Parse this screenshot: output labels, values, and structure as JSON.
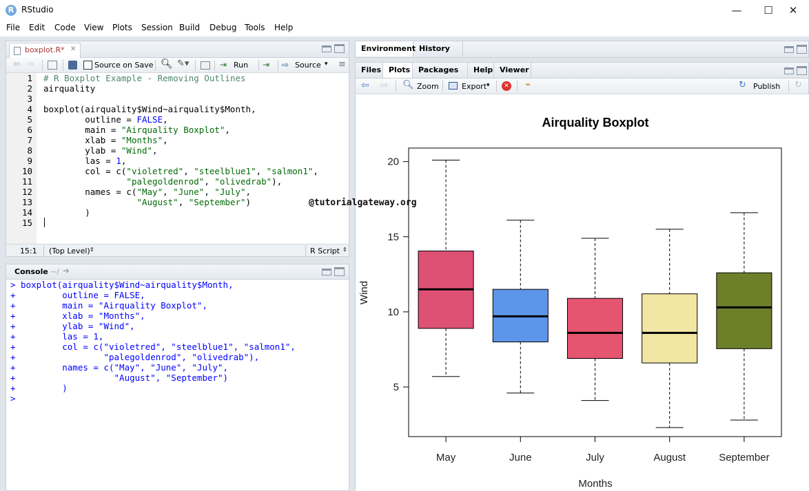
{
  "window": {
    "title": "RStudio",
    "icon_letter": "R",
    "controls": [
      "—",
      "☐",
      "✕"
    ]
  },
  "menu": [
    "File",
    "Edit",
    "Code",
    "View",
    "Plots",
    "Session",
    "Build",
    "Debug",
    "Tools",
    "Help"
  ],
  "editor": {
    "tab_label": "boxplot.R*",
    "source_on_save_label": "Source on Save",
    "run_label": "Run",
    "source_label": "Source",
    "line_numbers": [
      "1",
      "2",
      "3",
      "4",
      "5",
      "6",
      "7",
      "8",
      "9",
      "10",
      "11",
      "12",
      "13",
      "14",
      "15"
    ],
    "status_position": "15:1",
    "status_scope": "(Top Level)",
    "status_filetype": "R Script",
    "lines": [
      "# R Boxplot Example - Removing Outlines",
      "airquality",
      "",
      "boxplot(airquality$Wind~airquality$Month,",
      "        outline = FALSE,",
      "        main = \"Airquality Boxplot\",",
      "        xlab = \"Months\",",
      "        ylab = \"Wind\",",
      "        las = 1,",
      "        col = c(\"violetred\", \"steelblue1\", \"salmon1\",",
      "                \"palegoldenrod\", \"olivedrab\"),",
      "        names = c(\"May\", \"June\", \"July\",",
      "                  \"August\", \"September\")",
      "        )",
      ""
    ]
  },
  "watermark": "@tutorialgateway.org",
  "console": {
    "title": "Console",
    "path": "~/",
    "lines": [
      "> boxplot(airquality$Wind~airquality$Month,",
      "+         outline = FALSE,",
      "+         main = \"Airquality Boxplot\",",
      "+         xlab = \"Months\",",
      "+         ylab = \"Wind\",",
      "+         las = 1,",
      "+         col = c(\"violetred\", \"steelblue1\", \"salmon1\",",
      "+                 \"palegoldenrod\", \"olivedrab\"),",
      "+         names = c(\"May\", \"June\", \"July\",",
      "+                   \"August\", \"September\")",
      "+         )",
      "> "
    ]
  },
  "env_pane": {
    "tabs": [
      "Environment",
      "History"
    ]
  },
  "files_pane": {
    "tabs": [
      "Files",
      "Plots",
      "Packages",
      "Help",
      "Viewer"
    ],
    "active_tab": "Plots",
    "zoom_label": "Zoom",
    "export_label": "Export",
    "publish_label": "Publish"
  },
  "chart_data": {
    "type": "boxplot",
    "title": "Airquality Boxplot",
    "xlabel": "Months",
    "ylabel": "Wind",
    "categories": [
      "May",
      "June",
      "July",
      "August",
      "September"
    ],
    "colors": [
      "#de5074",
      "#5d95ea",
      "#e5556f",
      "#f2e6a4",
      "#6e7f2a"
    ],
    "boxes": [
      {
        "name": "May",
        "min": 5.7,
        "q1": 8.9,
        "median": 11.5,
        "q3": 14.05,
        "max": 20.1
      },
      {
        "name": "June",
        "min": 4.6,
        "q1": 8.0,
        "median": 9.7,
        "q3": 11.5,
        "max": 16.1
      },
      {
        "name": "July",
        "min": 4.1,
        "q1": 6.9,
        "median": 8.6,
        "q3": 10.9,
        "max": 14.9
      },
      {
        "name": "August",
        "min": 2.3,
        "q1": 6.6,
        "median": 8.6,
        "q3": 11.2,
        "max": 15.5
      },
      {
        "name": "September",
        "min": 2.8,
        "q1": 7.55,
        "median": 10.3,
        "q3": 12.6,
        "max": 16.6
      }
    ],
    "yticks": [
      "5",
      "10",
      "15",
      "20"
    ],
    "ylim": [
      1.7,
      20.9
    ]
  }
}
